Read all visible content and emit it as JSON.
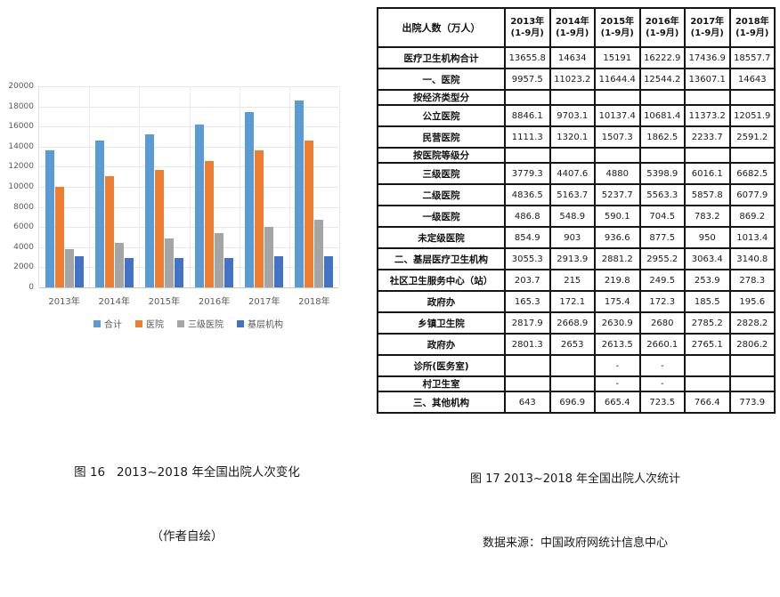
{
  "figure16": {
    "caption_line1": "图 16   2013~2018 年全国出院人次变化",
    "caption_line2": "（作者自绘）"
  },
  "figure17": {
    "caption_line1": "图 17 2013~2018 年全国出院人次统计",
    "caption_line2": "数据来源：中国政府网统计信息中心"
  },
  "chart_data": [
    {
      "type": "bar",
      "title": "",
      "xlabel": "",
      "ylabel": "",
      "categories": [
        "2013年",
        "2014年",
        "2015年",
        "2016年",
        "2017年",
        "2018年"
      ],
      "series": [
        {
          "name": "合计",
          "color": "#5B9BD5",
          "values": [
            13655.8,
            14634,
            15191,
            16222.9,
            17436.9,
            18557.7
          ]
        },
        {
          "name": "医院",
          "color": "#ED7D31",
          "values": [
            9957.5,
            11023.2,
            11644.4,
            12544.2,
            13607.1,
            14643
          ]
        },
        {
          "name": "三级医院",
          "color": "#A5A5A5",
          "values": [
            3779.3,
            4407.6,
            4880,
            5398.9,
            6016.1,
            6682.5
          ]
        },
        {
          "name": "基层机构",
          "color": "#4472C4",
          "values": [
            3055.3,
            2913.9,
            2881.2,
            2955.2,
            3063.4,
            3140.8
          ]
        }
      ],
      "ylim": [
        0,
        20000
      ],
      "ytick_step": 2000,
      "grid": true,
      "legend_position": "bottom"
    },
    {
      "type": "table",
      "header_label": "出院人数（万人）",
      "columns": [
        {
          "line1": "2013年",
          "line2": "(1-9月)"
        },
        {
          "line1": "2014年",
          "line2": "(1-9月)"
        },
        {
          "line1": "2015年",
          "line2": "(1-9月)"
        },
        {
          "line1": "2016年",
          "line2": "(1-9月)"
        },
        {
          "line1": "2017年",
          "line2": "(1-9月)"
        },
        {
          "line1": "2018年",
          "line2": "(1-9月)"
        }
      ],
      "rows": [
        {
          "label": "医疗卫生机构合计",
          "type": "normal",
          "values": [
            "13655.8",
            "14634",
            "15191",
            "16222.9",
            "17436.9",
            "18557.7"
          ]
        },
        {
          "label": "一、医院",
          "type": "normal",
          "values": [
            "9957.5",
            "11023.2",
            "11644.4",
            "12544.2",
            "13607.1",
            "14643"
          ]
        },
        {
          "label": "按经济类型分",
          "type": "short",
          "values": [
            "",
            "",
            "",
            "",
            "",
            ""
          ]
        },
        {
          "label": "公立医院",
          "type": "normal",
          "values": [
            "8846.1",
            "9703.1",
            "10137.4",
            "10681.4",
            "11373.2",
            "12051.9"
          ]
        },
        {
          "label": "民营医院",
          "type": "normal",
          "values": [
            "1111.3",
            "1320.1",
            "1507.3",
            "1862.5",
            "2233.7",
            "2591.2"
          ]
        },
        {
          "label": "按医院等级分",
          "type": "short",
          "values": [
            "",
            "",
            "",
            "",
            "",
            ""
          ]
        },
        {
          "label": "三级医院",
          "type": "normal",
          "values": [
            "3779.3",
            "4407.6",
            "4880",
            "5398.9",
            "6016.1",
            "6682.5"
          ]
        },
        {
          "label": "二级医院",
          "type": "normal",
          "values": [
            "4836.5",
            "5163.7",
            "5237.7",
            "5563.3",
            "5857.8",
            "6077.9"
          ]
        },
        {
          "label": "一级医院",
          "type": "normal",
          "values": [
            "486.8",
            "548.9",
            "590.1",
            "704.5",
            "783.2",
            "869.2"
          ]
        },
        {
          "label": "未定级医院",
          "type": "normal",
          "values": [
            "854.9",
            "903",
            "936.6",
            "877.5",
            "950",
            "1013.4"
          ]
        },
        {
          "label": "二、基层医疗卫生机构",
          "type": "normal",
          "values": [
            "3055.3",
            "2913.9",
            "2881.2",
            "2955.2",
            "3063.4",
            "3140.8"
          ]
        },
        {
          "label": "社区卫生服务中心（站）",
          "type": "normal",
          "values": [
            "203.7",
            "215",
            "219.8",
            "249.5",
            "253.9",
            "278.3"
          ]
        },
        {
          "label": "政府办",
          "type": "normal",
          "values": [
            "165.3",
            "172.1",
            "175.4",
            "172.3",
            "185.5",
            "195.6"
          ]
        },
        {
          "label": "乡镇卫生院",
          "type": "normal",
          "values": [
            "2817.9",
            "2668.9",
            "2630.9",
            "2680",
            "2785.2",
            "2828.2"
          ]
        },
        {
          "label": "政府办",
          "type": "normal",
          "values": [
            "2801.3",
            "2653",
            "2613.5",
            "2660.1",
            "2765.1",
            "2806.2"
          ]
        },
        {
          "label": "诊所(医务室)",
          "type": "normal",
          "values": [
            "",
            "",
            "-",
            "-",
            "",
            ""
          ]
        },
        {
          "label": "村卫生室",
          "type": "short",
          "values": [
            "",
            "",
            "-",
            "-",
            "",
            ""
          ]
        },
        {
          "label": "三、其他机构",
          "type": "normal",
          "values": [
            "643",
            "696.9",
            "665.4",
            "723.5",
            "766.4",
            "773.9"
          ]
        }
      ]
    }
  ]
}
